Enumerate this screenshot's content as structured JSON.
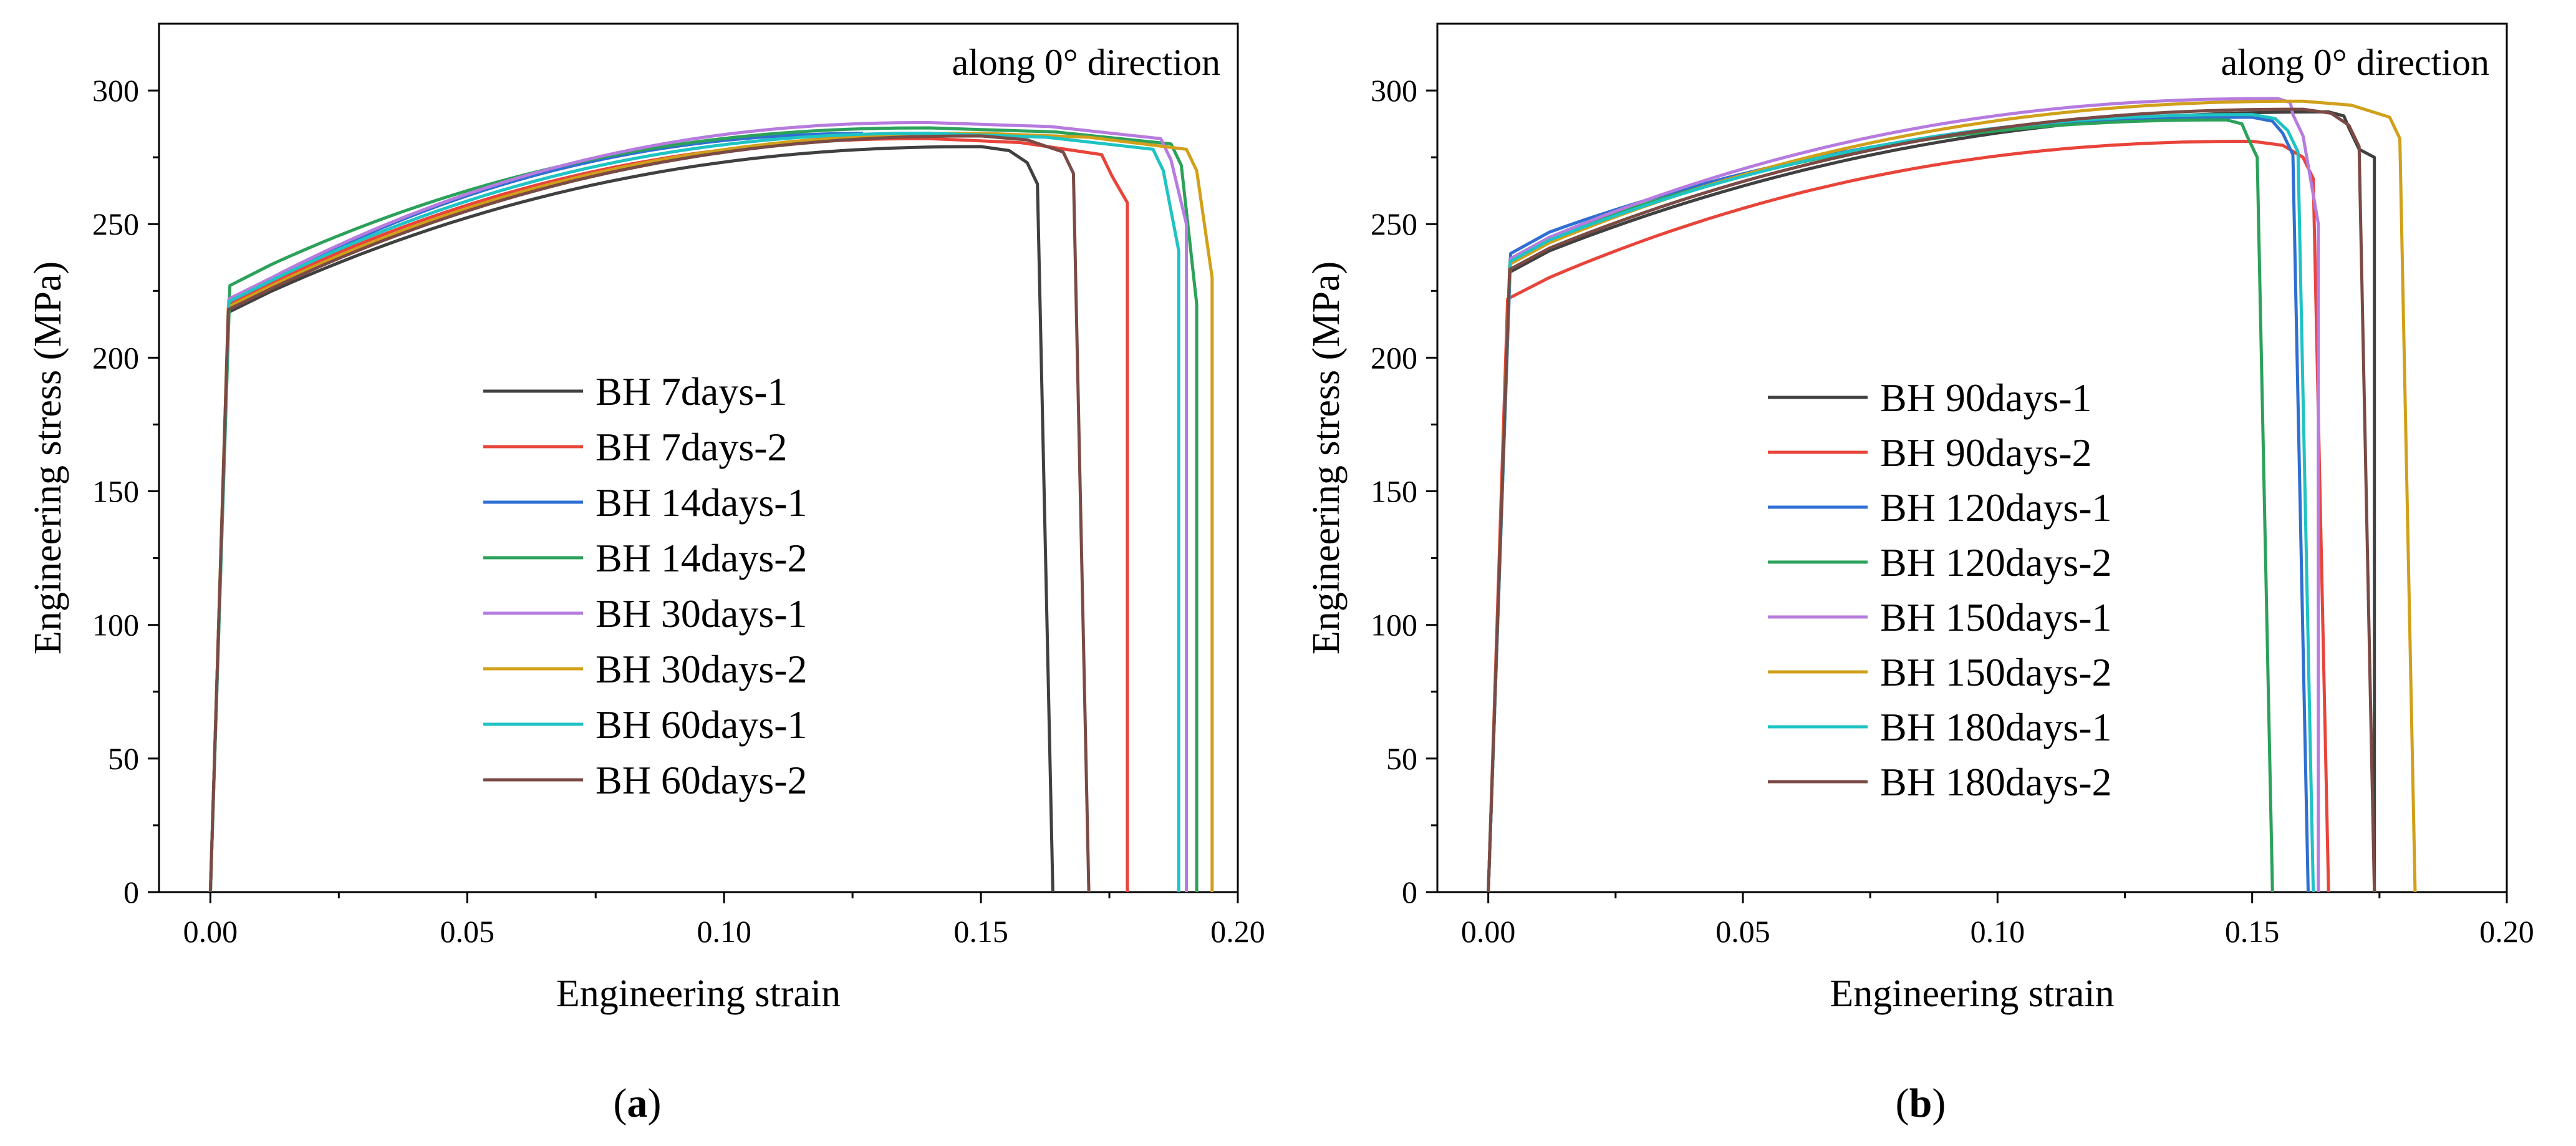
{
  "panels": [
    {
      "label_open": "(",
      "label_letter": "a",
      "label_close": ")"
    },
    {
      "label_open": "(",
      "label_letter": "b",
      "label_close": ")"
    }
  ],
  "chart_data": [
    {
      "type": "line",
      "title": "",
      "annotation": "along 0° direction",
      "xlabel": "Engineering strain",
      "ylabel": "Engineering stress (MPa)",
      "xlim": [
        -0.01,
        0.2
      ],
      "ylim": [
        0,
        325
      ],
      "xticks": [
        0.0,
        0.05,
        0.1,
        0.15,
        0.2
      ],
      "xtick_labels": [
        "0.00",
        "0.05",
        "0.10",
        "0.15",
        "0.20"
      ],
      "yticks": [
        0,
        50,
        100,
        150,
        200,
        250,
        300
      ],
      "ytick_labels": [
        "0",
        "50",
        "100",
        "150",
        "200",
        "250",
        "300"
      ],
      "grid": false,
      "legend_position": "center",
      "series": [
        {
          "name": "BH 7days-1",
          "color": "#404040",
          "yield": 217,
          "uts": 279,
          "uts_strain": 0.15,
          "frac_strain": 0.164,
          "end_stress": 0,
          "yield_strain": 0.0035
        },
        {
          "name": "BH 7days-2",
          "color": "#e8443a",
          "yield": 220,
          "uts": 282,
          "uts_strain": 0.14,
          "frac_strain": 0.1785,
          "end_stress": 258,
          "yield_strain": 0.0036
        },
        {
          "name": "BH 14days-1",
          "color": "#2f6fd1",
          "yield": 221,
          "uts": 284,
          "uts_strain": 0.13,
          "frac_strain": 0.149,
          "end_stress": 283,
          "yield_strain": 0.0036
        },
        {
          "name": "BH 14days-2",
          "color": "#2ba15a",
          "yield": 227,
          "uts": 286,
          "uts_strain": 0.14,
          "frac_strain": 0.192,
          "end_stress": 220,
          "yield_strain": 0.0038
        },
        {
          "name": "BH 30days-1",
          "color": "#b67bde",
          "yield": 222,
          "uts": 288,
          "uts_strain": 0.14,
          "frac_strain": 0.19,
          "end_stress": 250,
          "yield_strain": 0.0036
        },
        {
          "name": "BH 30days-2",
          "color": "#d1a01a",
          "yield": 219,
          "uts": 284,
          "uts_strain": 0.15,
          "frac_strain": 0.195,
          "end_stress": 230,
          "yield_strain": 0.0035
        },
        {
          "name": "BH 60days-1",
          "color": "#1fc3c3",
          "yield": 221,
          "uts": 284,
          "uts_strain": 0.14,
          "frac_strain": 0.1885,
          "end_stress": 240,
          "yield_strain": 0.0036
        },
        {
          "name": "BH 60days-2",
          "color": "#7a4a45",
          "yield": 218,
          "uts": 283,
          "uts_strain": 0.15,
          "frac_strain": 0.171,
          "end_stress": 0,
          "yield_strain": 0.0035
        }
      ]
    },
    {
      "type": "line",
      "title": "",
      "annotation": "along 0° direction",
      "xlabel": "Engineering strain",
      "ylabel": "Engineering stress (MPa)",
      "xlim": [
        -0.01,
        0.2
      ],
      "ylim": [
        0,
        325
      ],
      "xticks": [
        0.0,
        0.05,
        0.1,
        0.15,
        0.2
      ],
      "xtick_labels": [
        "0.00",
        "0.05",
        "0.10",
        "0.15",
        "0.20"
      ],
      "yticks": [
        0,
        50,
        100,
        150,
        200,
        250,
        300
      ],
      "ytick_labels": [
        "0",
        "50",
        "100",
        "150",
        "200",
        "250",
        "300"
      ],
      "grid": false,
      "legend_position": "center",
      "series": [
        {
          "name": "BH 90days-1",
          "color": "#404040",
          "yield": 232,
          "uts": 292,
          "uts_strain": 0.165,
          "frac_strain": 0.174,
          "end_stress": 275,
          "yield_strain": 0.0042
        },
        {
          "name": "BH 90days-2",
          "color": "#e8443a",
          "yield": 222,
          "uts": 281,
          "uts_strain": 0.15,
          "frac_strain": 0.165,
          "end_stress": 0,
          "yield_strain": 0.0038
        },
        {
          "name": "BH 120days-1",
          "color": "#2f6fd1",
          "yield": 239,
          "uts": 290,
          "uts_strain": 0.15,
          "frac_strain": 0.161,
          "end_stress": 0,
          "yield_strain": 0.0044
        },
        {
          "name": "BH 120days-2",
          "color": "#2ba15a",
          "yield": 237,
          "uts": 289,
          "uts_strain": 0.145,
          "frac_strain": 0.154,
          "end_stress": 0,
          "yield_strain": 0.0043
        },
        {
          "name": "BH 150days-1",
          "color": "#b67bde",
          "yield": 237,
          "uts": 297,
          "uts_strain": 0.155,
          "frac_strain": 0.163,
          "end_stress": 250,
          "yield_strain": 0.0043
        },
        {
          "name": "BH 150days-2",
          "color": "#d1a01a",
          "yield": 235,
          "uts": 296,
          "uts_strain": 0.16,
          "frac_strain": 0.182,
          "end_stress": 0,
          "yield_strain": 0.0042
        },
        {
          "name": "BH 180days-1",
          "color": "#1fc3c3",
          "yield": 236,
          "uts": 291,
          "uts_strain": 0.15,
          "frac_strain": 0.162,
          "end_stress": 0,
          "yield_strain": 0.0043
        },
        {
          "name": "BH 180days-2",
          "color": "#7a4a45",
          "yield": 233,
          "uts": 293,
          "uts_strain": 0.16,
          "frac_strain": 0.174,
          "end_stress": 0,
          "yield_strain": 0.0042
        }
      ]
    }
  ]
}
